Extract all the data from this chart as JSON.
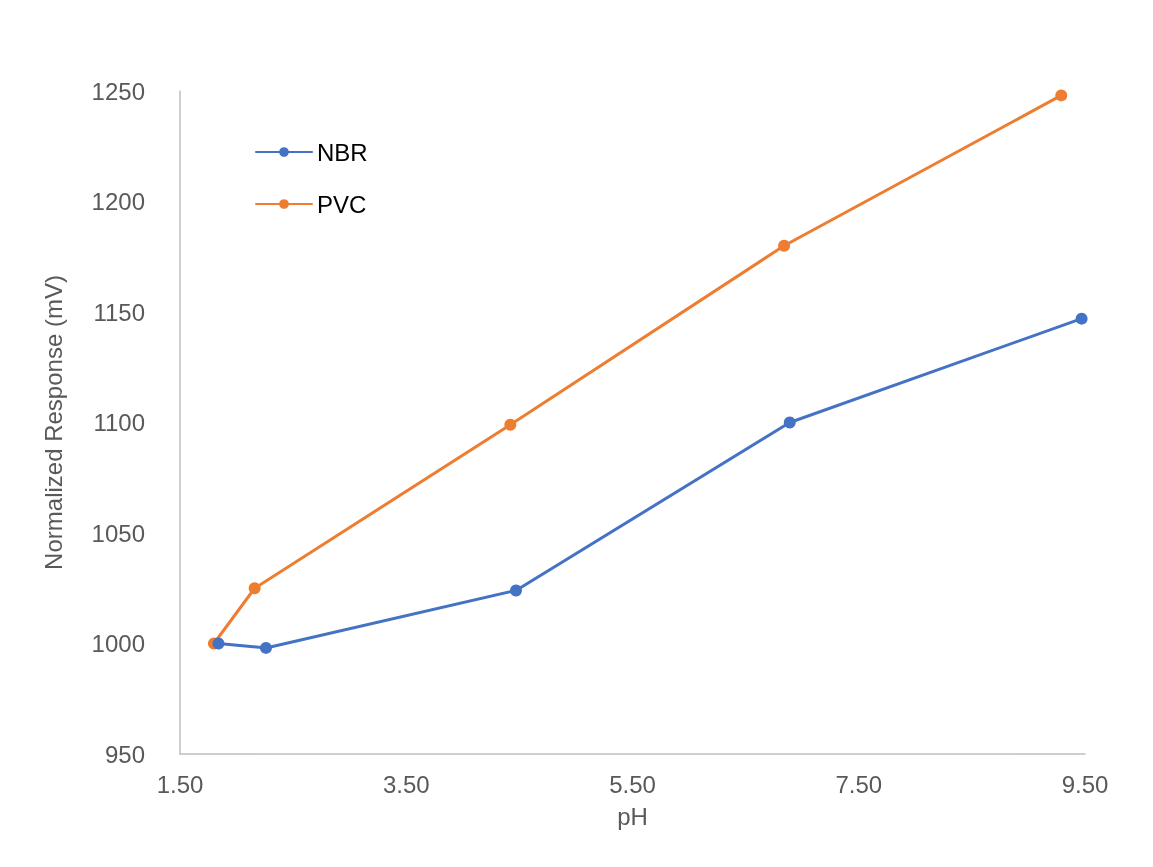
{
  "chart_data": {
    "type": "line",
    "xlabel": "pH",
    "ylabel": "Normalized Response (mV)",
    "xlim": [
      1.5,
      9.5
    ],
    "xticks": [
      {
        "value": 1.5,
        "label": "1.50"
      },
      {
        "value": 3.5,
        "label": "3.50"
      },
      {
        "value": 5.5,
        "label": "5.50"
      },
      {
        "value": 7.5,
        "label": "7.50"
      },
      {
        "value": 9.5,
        "label": "9.50"
      }
    ],
    "ylim": [
      950,
      1250
    ],
    "yticks": [
      950,
      1000,
      1050,
      1100,
      1150,
      1200,
      1250
    ],
    "grid": false,
    "legend": "top left",
    "marker": "circle",
    "line_style": "solid",
    "series": [
      {
        "name": "NBR",
        "color": "#4472c4",
        "x": [
          1.84,
          2.26,
          4.47,
          6.89,
          9.47
        ],
        "values": [
          1000,
          998,
          1024,
          1100,
          1147
        ]
      },
      {
        "name": "PVC",
        "color": "#ed7d31",
        "x": [
          1.8,
          2.16,
          4.42,
          6.84,
          9.29
        ],
        "values": [
          1000,
          1025,
          1099,
          1180,
          1248
        ]
      }
    ]
  }
}
